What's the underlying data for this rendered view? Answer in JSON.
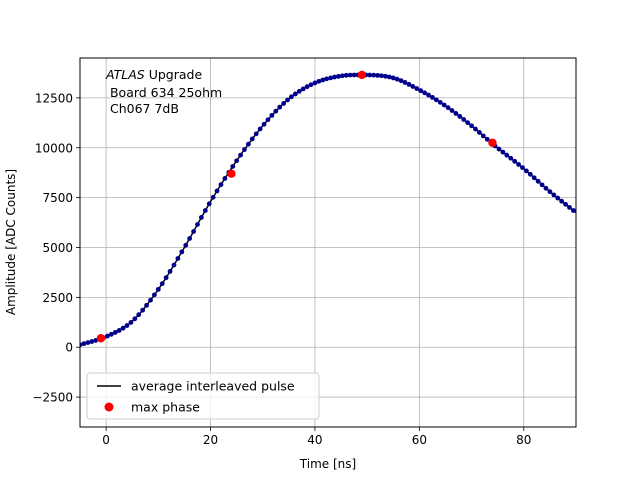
{
  "chart_data": {
    "type": "scatter",
    "title": "",
    "xlabel": "Time [ns]",
    "ylabel": "Amplitude [ADC Counts]",
    "xlim": [
      -5,
      90
    ],
    "ylim": [
      -4000,
      14500
    ],
    "grid": true,
    "x_ticks": [
      0,
      20,
      40,
      60,
      80
    ],
    "x_tick_labels": [
      "0",
      "20",
      "40",
      "60",
      "80"
    ],
    "y_ticks": [
      -2500,
      0,
      2500,
      5000,
      7500,
      10000,
      12500
    ],
    "y_tick_labels": [
      "−2500",
      "0",
      "2500",
      "5000",
      "7500",
      "10000",
      "12500"
    ],
    "annotation": {
      "italic": "ATLAS",
      "line1_rest": " Upgrade",
      "line2": " Board 634 25ohm",
      "line3": " Ch067 7dB"
    },
    "legend": {
      "placement": "lower-left",
      "entries": [
        {
          "label": "average interleaved pulse",
          "marker": "line",
          "color": "#000000"
        },
        {
          "label": "max phase",
          "marker": "dot",
          "color": "#ff0000"
        }
      ]
    },
    "series": [
      {
        "name": "average interleaved pulse",
        "color": "#000000",
        "marker_color": "#00008b",
        "x": [
          -5,
          0,
          5,
          10,
          15,
          20,
          25,
          30,
          35,
          40,
          45,
          49,
          55,
          60,
          65,
          70,
          74,
          80,
          85,
          90
        ],
        "y": [
          120,
          530,
          1300,
          2900,
          5000,
          7300,
          9350,
          11100,
          12450,
          13250,
          13600,
          13650,
          13500,
          12900,
          12100,
          11100,
          10200,
          8950,
          7800,
          6750
        ]
      },
      {
        "name": "max phase",
        "color": "#ff0000",
        "x": [
          -1,
          24,
          49,
          74
        ],
        "y": [
          450,
          8700,
          13650,
          10250
        ]
      }
    ]
  }
}
